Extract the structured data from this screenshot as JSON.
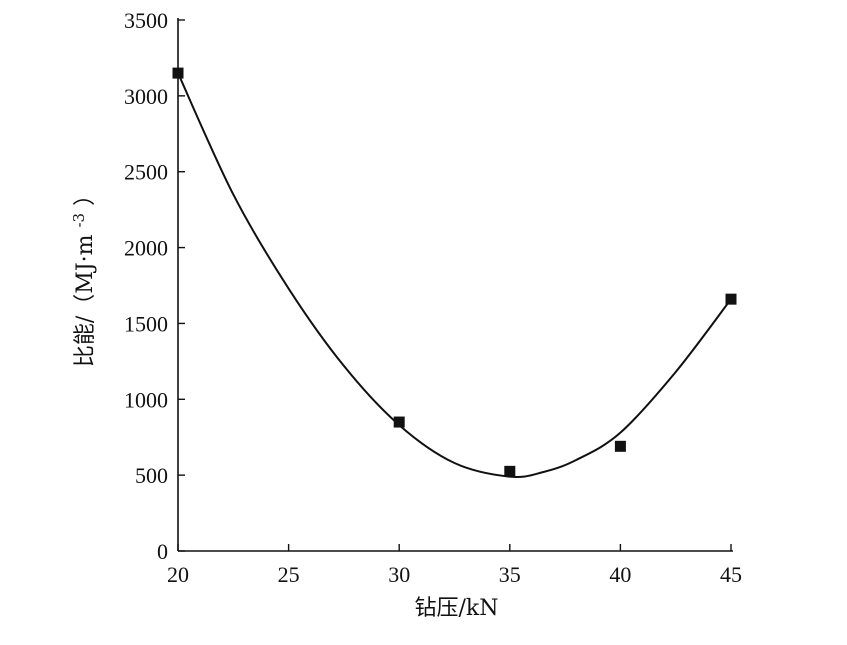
{
  "chart_data": {
    "type": "scatter",
    "title": "",
    "xlabel": "钻压/kN",
    "ylabel": "比能/（MJ·m",
    "ylabel_sup": "-3",
    "ylabel_close": "）",
    "xlim": [
      20,
      45
    ],
    "ylim": [
      0,
      3500
    ],
    "xticks": [
      20,
      25,
      30,
      35,
      40,
      45
    ],
    "yticks": [
      0,
      500,
      1000,
      1500,
      2000,
      2500,
      3000,
      3500
    ],
    "grid": false,
    "legend": "none",
    "series": [
      {
        "kind": "points",
        "marker": "square",
        "x": [
          20,
          30,
          35,
          40,
          45
        ],
        "y": [
          3150,
          850,
          525,
          690,
          1660
        ]
      },
      {
        "kind": "fit-curve",
        "x": [
          20,
          22.5,
          25,
          27.5,
          30,
          32.5,
          35,
          36.5,
          38,
          40,
          42.5,
          45
        ],
        "y": [
          3150,
          2350,
          1730,
          1220,
          830,
          580,
          490,
          520,
          600,
          780,
          1180,
          1660
        ]
      }
    ]
  }
}
